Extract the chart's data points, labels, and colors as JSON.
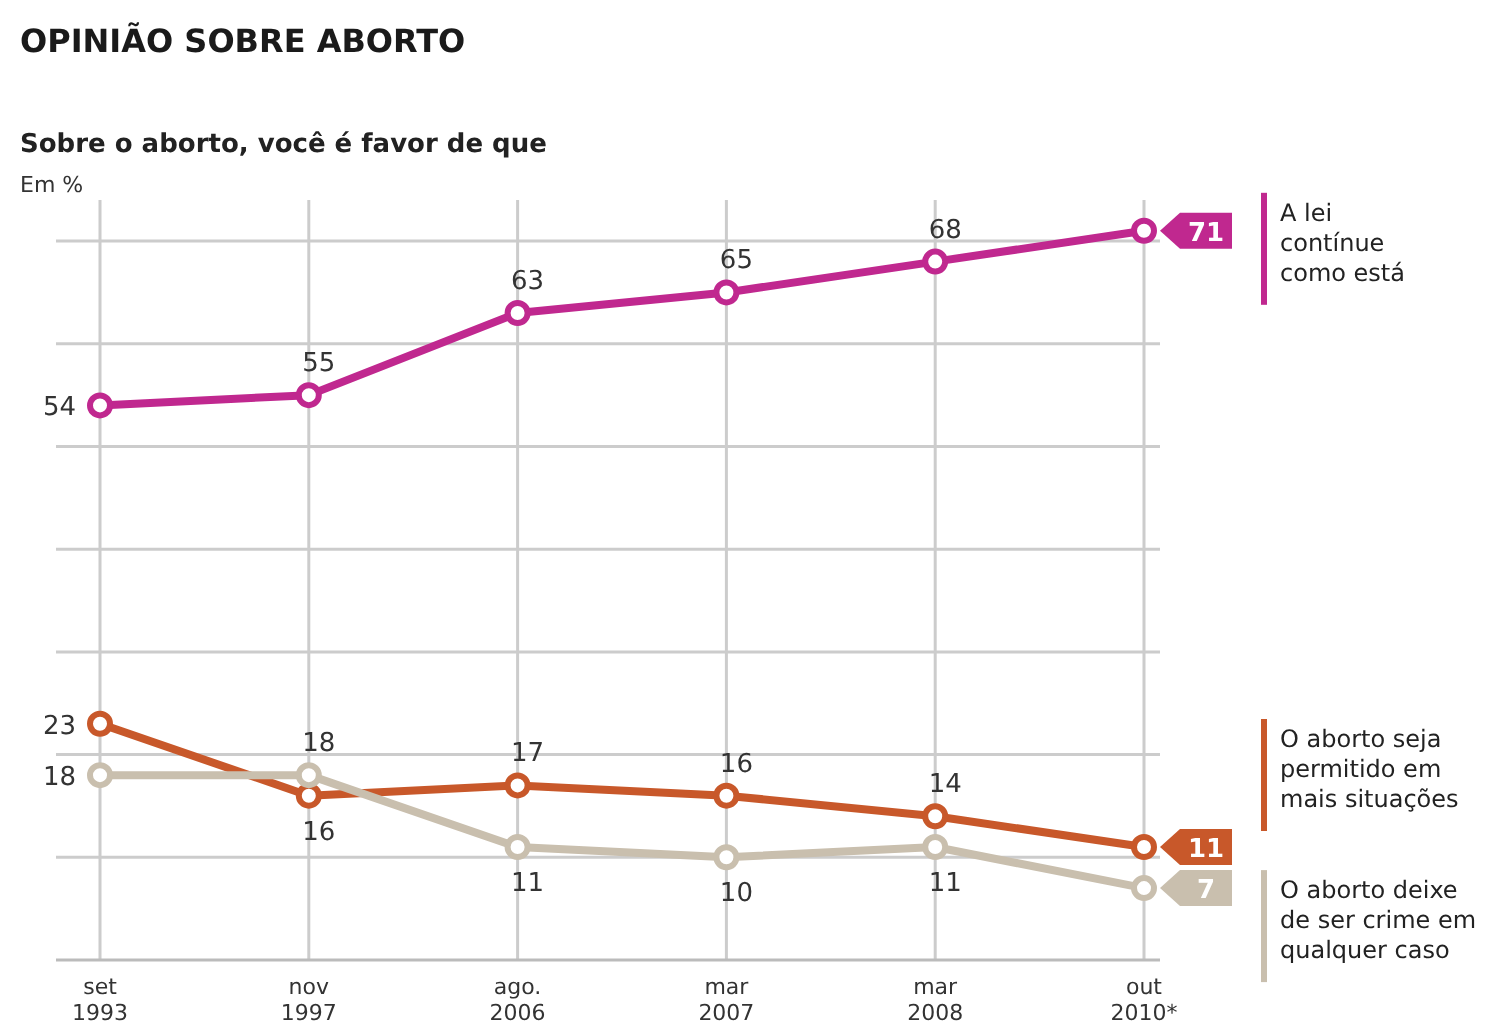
{
  "chart_data": {
    "type": "line",
    "title": "OPINIÃO SOBRE ABORTO",
    "subtitle": "Sobre o aborto, você é favor de que",
    "ylabel": "Em %",
    "categories": [
      "set 1993",
      "nov 1997",
      "ago. 2006",
      "mar 2007",
      "mar 2008",
      "out 2010*"
    ],
    "series": [
      {
        "name": "A lei contínue como está",
        "color": "#c0288f",
        "values": [
          54,
          55,
          63,
          65,
          68,
          71
        ]
      },
      {
        "name": "O aborto seja permitido em mais situações",
        "color": "#c8582a",
        "values": [
          23,
          16,
          17,
          16,
          14,
          11
        ]
      },
      {
        "name": "O aborto deixe de ser crime em qualquer caso",
        "color": "#c9bfae",
        "values": [
          18,
          18,
          11,
          10,
          11,
          7
        ]
      }
    ],
    "ylim": [
      0,
      74
    ],
    "yticks": [
      {
        "value": 10,
        "label": null
      },
      {
        "value": 20,
        "label": null
      },
      {
        "value": 30,
        "label": null
      },
      {
        "value": 40,
        "label": null
      },
      {
        "value": 50,
        "label": null
      },
      {
        "value": 60,
        "label": null
      },
      {
        "value": 70,
        "label": null
      }
    ],
    "tick_labels": "x",
    "grid": true,
    "marker": "circle",
    "line_style": "solid",
    "data_labels": true,
    "legend": "right"
  }
}
